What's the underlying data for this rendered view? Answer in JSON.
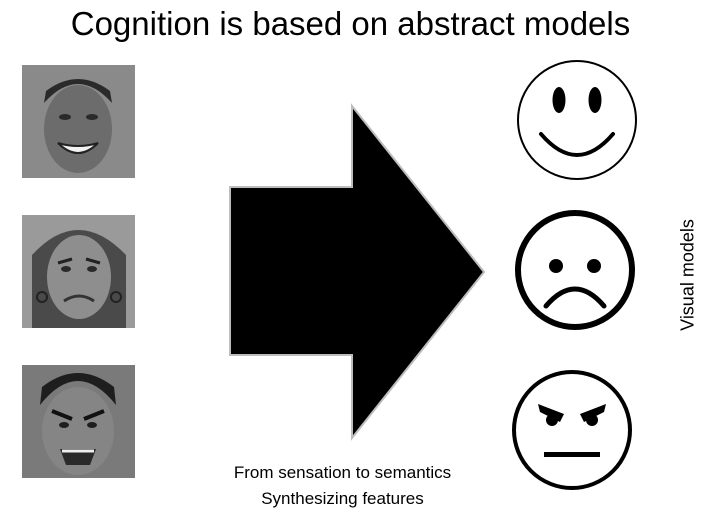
{
  "title": "Cognition is based on abstract models",
  "photos": [
    {
      "expression": "happy"
    },
    {
      "expression": "sad"
    },
    {
      "expression": "angry"
    }
  ],
  "models": [
    {
      "expression": "happy"
    },
    {
      "expression": "sad"
    },
    {
      "expression": "angry"
    }
  ],
  "caption": {
    "line1": "From sensation to semantics",
    "line2": "Synthesizing features"
  },
  "side_label": "Visual models",
  "colors": {
    "background": "#ffffff",
    "arrow": "#000000",
    "photo_gray": "#777777"
  }
}
